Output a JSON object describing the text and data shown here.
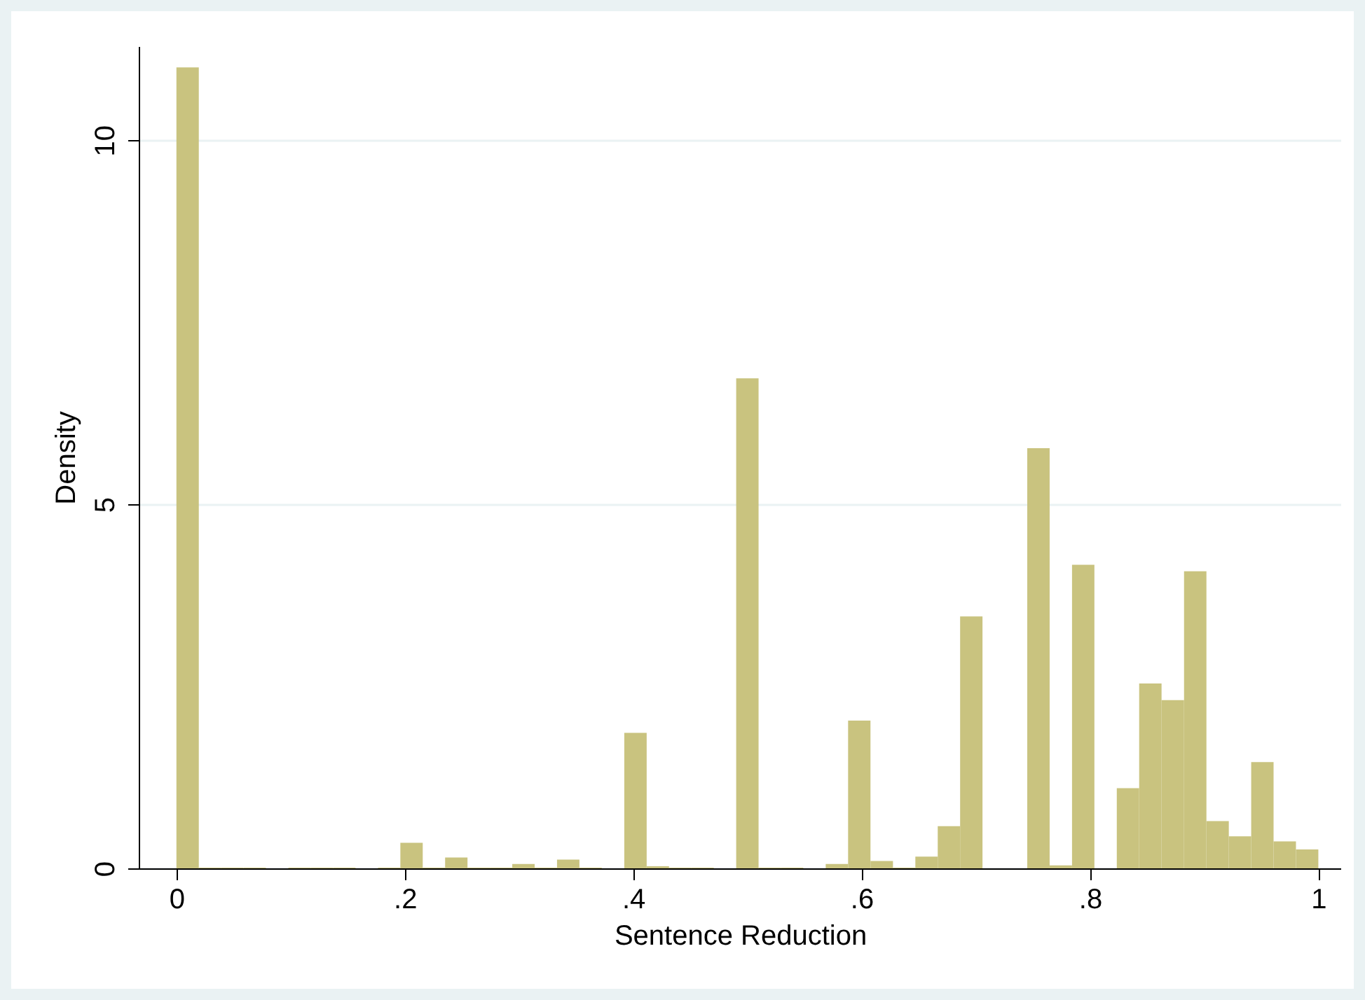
{
  "chart_data": {
    "type": "histogram",
    "xlabel": "Sentence Reduction",
    "ylabel": "Density",
    "color": "#c9c37f",
    "bins": [
      0,
      0.0196,
      0.0392,
      0.0588,
      0.0784,
      0.098,
      0.1176,
      0.1373,
      0.1569,
      0.1765,
      0.1961,
      0.2157,
      0.2353,
      0.2549,
      0.2745,
      0.2941,
      0.3137,
      0.3333,
      0.3529,
      0.3725,
      0.3922,
      0.4118,
      0.4314,
      0.451,
      0.4706,
      0.4902,
      0.5098,
      0.5294,
      0.549,
      0.5686,
      0.5882,
      0.6078,
      0.6275,
      0.6471,
      0.6667,
      0.6863,
      0.7059,
      0.7255,
      0.7451,
      0.7647,
      0.7843,
      0.8039,
      0.8235,
      0.8431,
      0.8627,
      0.8824,
      0.902,
      0.9216,
      0.9412,
      0.9608,
      0.9804,
      1
    ],
    "values": [
      11.0,
      0.01,
      0.01,
      0.01,
      0,
      0.01,
      0.01,
      0.01,
      0,
      0.01,
      0.35,
      0.01,
      0.15,
      0.01,
      0.01,
      0.06,
      0.01,
      0.12,
      0.01,
      0,
      1.86,
      0.03,
      0.01,
      0.01,
      0,
      6.73,
      0.01,
      0.01,
      0,
      0.06,
      2.03,
      0.1,
      0.01,
      0.16,
      0.58,
      3.46,
      0,
      0,
      5.77,
      0.04,
      4.17,
      0,
      1.1,
      2.54,
      2.31,
      4.08,
      0.65,
      0.44,
      1.46,
      0.37,
      0.26
    ],
    "xlim": [
      -0.033,
      1.02
    ],
    "ylim": [
      0,
      11.29
    ],
    "xticks": [
      0,
      {
        "value": 0.2,
        "label": ".2"
      },
      {
        "value": 0.4,
        "label": ".4"
      },
      {
        "value": 0.6,
        "label": ".6"
      },
      {
        "value": 0.8,
        "label": ".8"
      },
      1
    ],
    "yticks": [
      0,
      5,
      10
    ],
    "grid": "y"
  }
}
